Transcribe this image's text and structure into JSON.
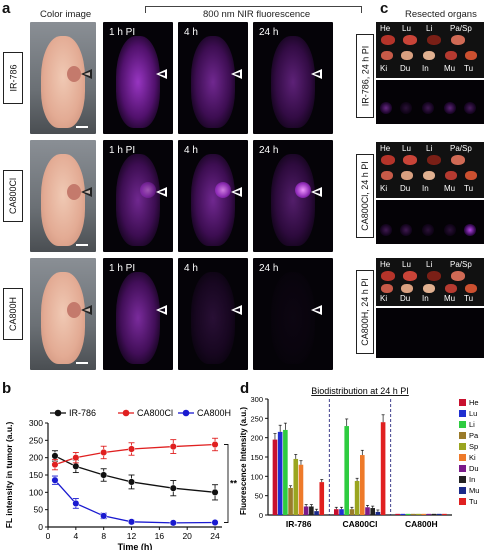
{
  "panel_a": {
    "letter": "a",
    "color_header": "Color image",
    "nir_header": "800 nm NIR fluorescence",
    "timepoints": [
      "1 h PI",
      "4 h",
      "24 h"
    ],
    "rows": [
      {
        "label": "IR-786"
      },
      {
        "label": "CA800Cl"
      },
      {
        "label": "CA800H"
      }
    ],
    "nir_color": "#c040ff"
  },
  "panel_c": {
    "letter": "c",
    "header": "Resected organs",
    "top_labels": [
      "He",
      "Lu",
      "Li",
      "Pa/Sp"
    ],
    "bottom_labels": [
      "Ki",
      "Du",
      "In",
      "Mu",
      "Tu"
    ],
    "row_labels": [
      "IR-786, 24 h PI",
      "CA800Cl, 24 h PI",
      "CA800H, 24 h PI"
    ]
  },
  "chart_data": [
    {
      "panel": "b",
      "type": "line",
      "xlabel": "Time (h)",
      "ylabel": "FL intensity in tumor (a.u.)",
      "xlim": [
        0,
        25
      ],
      "ylim": [
        0,
        300
      ],
      "xticks": [
        0,
        4,
        8,
        12,
        16,
        20,
        24
      ],
      "yticks": [
        0,
        50,
        100,
        150,
        200,
        250,
        300
      ],
      "x": [
        1,
        4,
        8,
        12,
        18,
        24
      ],
      "series": [
        {
          "name": "IR-786",
          "color": "#111111",
          "values": [
            205,
            175,
            150,
            130,
            112,
            100
          ],
          "err": [
            15,
            18,
            18,
            20,
            22,
            22
          ]
        },
        {
          "name": "CA800Cl",
          "color": "#e02020",
          "values": [
            180,
            200,
            215,
            225,
            232,
            238
          ],
          "err": [
            15,
            15,
            18,
            18,
            20,
            18
          ]
        },
        {
          "name": "CA800H",
          "color": "#1a1ad0",
          "values": [
            135,
            68,
            32,
            15,
            12,
            13
          ],
          "err": [
            12,
            14,
            8,
            5,
            4,
            4
          ]
        }
      ],
      "legend": "top",
      "annotation": "**"
    },
    {
      "panel": "d",
      "type": "bar",
      "title": "Biodistribution at 24 h PI",
      "ylabel": "Fluorescence Intensity (a.u.)",
      "ylim": [
        0,
        300
      ],
      "yticks": [
        0,
        50,
        100,
        150,
        200,
        250,
        300
      ],
      "groups": [
        "IR-786",
        "CA800Cl",
        "CA800H"
      ],
      "series": [
        {
          "name": "He",
          "color": "#c8102e",
          "values": [
            195,
            15,
            3
          ]
        },
        {
          "name": "Lu",
          "color": "#1f2fd0",
          "values": [
            215,
            15,
            3
          ]
        },
        {
          "name": "Li",
          "color": "#2ecc40",
          "values": [
            220,
            230,
            3
          ]
        },
        {
          "name": "Pa",
          "color": "#9a7b2a",
          "values": [
            70,
            15,
            3
          ]
        },
        {
          "name": "Sp",
          "color": "#9aa520",
          "values": [
            145,
            88,
            3
          ]
        },
        {
          "name": "Ki",
          "color": "#ee7a2a",
          "values": [
            130,
            155,
            3
          ]
        },
        {
          "name": "Du",
          "color": "#7a1a8a",
          "values": [
            22,
            20,
            3
          ]
        },
        {
          "name": "In",
          "color": "#222222",
          "values": [
            22,
            18,
            3
          ]
        },
        {
          "name": "Mu",
          "color": "#1a2a8a",
          "values": [
            10,
            8,
            3
          ]
        },
        {
          "name": "Tu",
          "color": "#e02020",
          "values": [
            85,
            240,
            3
          ]
        }
      ],
      "legend": "right"
    }
  ],
  "panel_b_letter": "b",
  "panel_d_letter": "d"
}
